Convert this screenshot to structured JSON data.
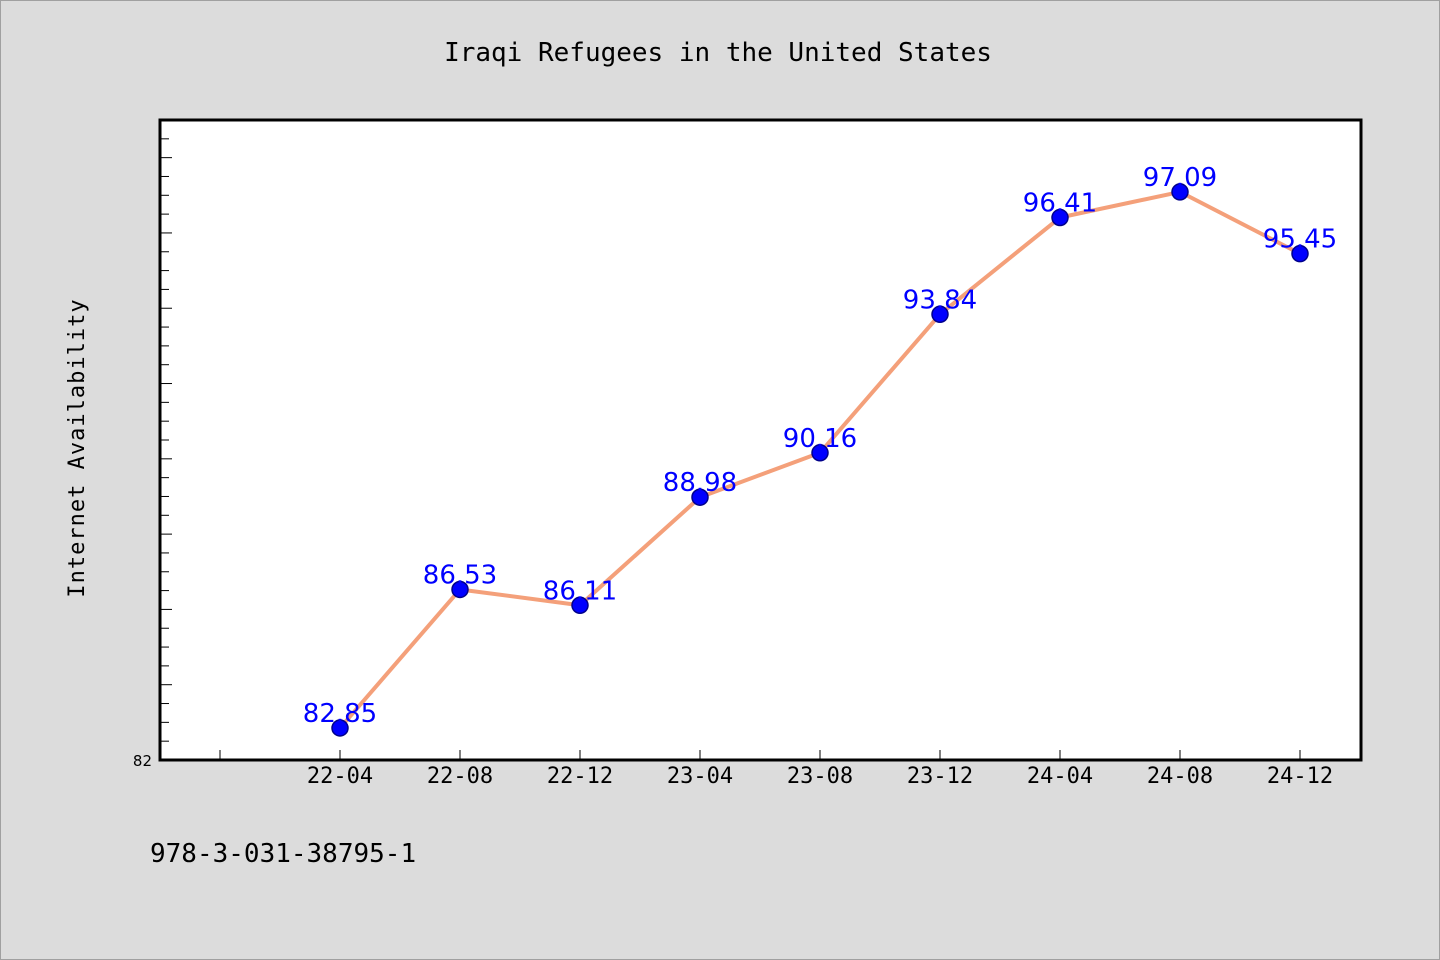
{
  "chart_data": {
    "type": "line",
    "title": "Iraqi Refugees in the United States",
    "xlabel": "",
    "ylabel": "Internet Availability",
    "categories": [
      "22-04",
      "22-08",
      "22-12",
      "23-04",
      "23-08",
      "23-12",
      "24-04",
      "24-08",
      "24-12"
    ],
    "series": [
      {
        "values": [
          82.85,
          86.53,
          86.11,
          88.98,
          90.16,
          93.84,
          96.41,
          97.09,
          95.45
        ],
        "data_labels": [
          "82.85",
          "86.53",
          "86.11",
          "88.98",
          "90.16",
          "93.84",
          "96.41",
          "97.09",
          "95.45"
        ]
      }
    ],
    "y_tick_labels": [
      "82"
    ],
    "ylim": [
      82,
      99
    ],
    "grid": false,
    "legend": "none",
    "colors": {
      "line": "#f4a07a",
      "marker": "#0000ff",
      "label": "#0000ff",
      "background": "#dcdcdc",
      "plot_background": "#ffffff"
    }
  },
  "footer": {
    "isbn": "978-3-031-38795-1"
  }
}
